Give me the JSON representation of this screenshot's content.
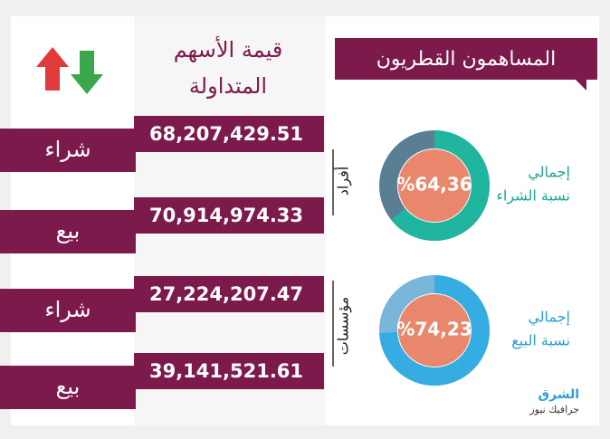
{
  "header": {
    "title": "المساهمون القطريون",
    "column_title": [
      "قيمة الأسهم",
      "المتداولة"
    ]
  },
  "groups": [
    {
      "label": "أفراد",
      "rows": [
        {
          "type": "شراء",
          "value": "68,207,429.51"
        },
        {
          "type": "بيع",
          "value": "70,914,974.33"
        }
      ]
    },
    {
      "label": "مؤسسات",
      "rows": [
        {
          "type": "شراء",
          "value": "27,224,207.47"
        },
        {
          "type": "بيع",
          "value": "39,141,521.61"
        }
      ]
    }
  ],
  "donuts": [
    {
      "caption": [
        "إجمالي",
        "نسبة الشراء"
      ],
      "value": 64.36,
      "label": "%64,36",
      "color": "#1fb59e",
      "rest_color": "#5a7f95",
      "caption_color": "#1fa590"
    },
    {
      "caption": [
        "إجمالي",
        "نسبة البيع"
      ],
      "value": 74.23,
      "label": "%74,23",
      "color": "#35ade3",
      "rest_color": "#7ab6d9",
      "caption_color": "#2a9fd8"
    }
  ],
  "logo": {
    "name": "الشرق",
    "sub": "جرافيك نيوز"
  }
}
